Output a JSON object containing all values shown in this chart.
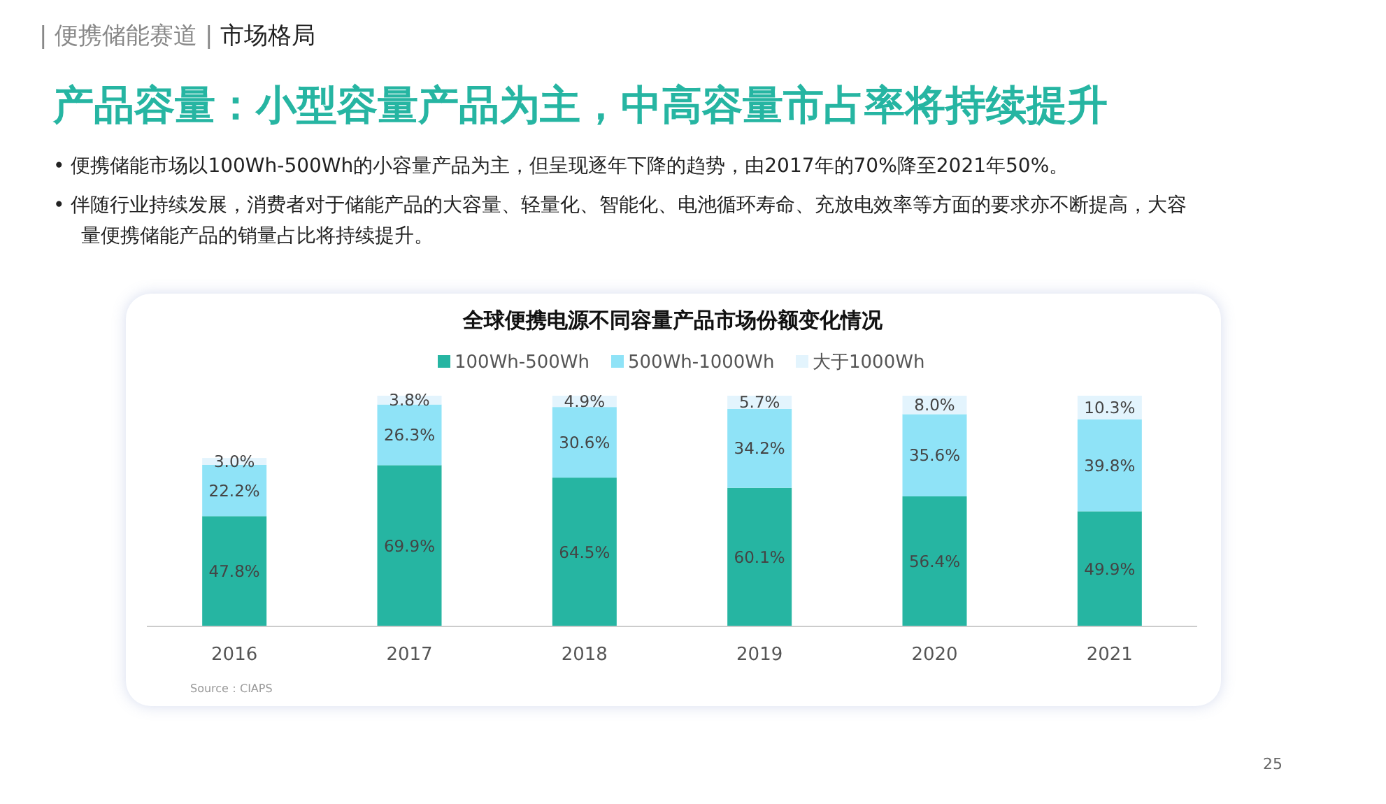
{
  "chart_data": {
    "type": "bar",
    "stacked": true,
    "title": "全球便携电源不同容量产品市场份额变化情况",
    "subtitle": "产品容量：小型容量产品为主，中高容量市占率将持续提升",
    "annotations": [
      "| 便携储能赛道 |",
      "市场格局",
      "• 便携储能市场以100Wh-500Wh的小容量产品为主，但呈现逐年下降的趋势，由2017年的70%降至2021年50%。",
      "• 伴随行业持续发展，消费者对于储能产品的大容量、轻量化、智能化、电池循环寿命、充放电效率等方面的要求亦不断提高，大容量便携储能产品的销量占比将持续提升。",
      "Source：CIAPS",
      "25"
    ],
    "categories": [
      "2016",
      "2017",
      "2018",
      "2019",
      "2020",
      "2021"
    ],
    "series": [
      {
        "name": "100Wh-500Wh",
        "color": "#26b5a2",
        "values": [
          47.8,
          69.9,
          64.5,
          60.1,
          56.4,
          49.9
        ],
        "value_labels": [
          "47.8%",
          "69.9%",
          "64.5%",
          "60.1%",
          "56.4%",
          "49.9%"
        ]
      },
      {
        "name": "500Wh-1000Wh",
        "color": "#8fe3f7",
        "values": [
          22.2,
          26.3,
          30.6,
          34.2,
          35.6,
          39.8
        ],
        "value_labels": [
          "22.2%",
          "26.3%",
          "30.6%",
          "34.2%",
          "35.6%",
          "39.8%"
        ]
      },
      {
        "name": "大于1000Wh",
        "color": "#e3f4fd",
        "values": [
          3.0,
          3.8,
          4.9,
          5.7,
          8.0,
          10.3
        ],
        "value_labels": [
          "3.0%",
          "3.8%",
          "4.9%",
          "5.7%",
          "8.0%",
          "10.3%"
        ]
      }
    ],
    "legend": "top"
  }
}
